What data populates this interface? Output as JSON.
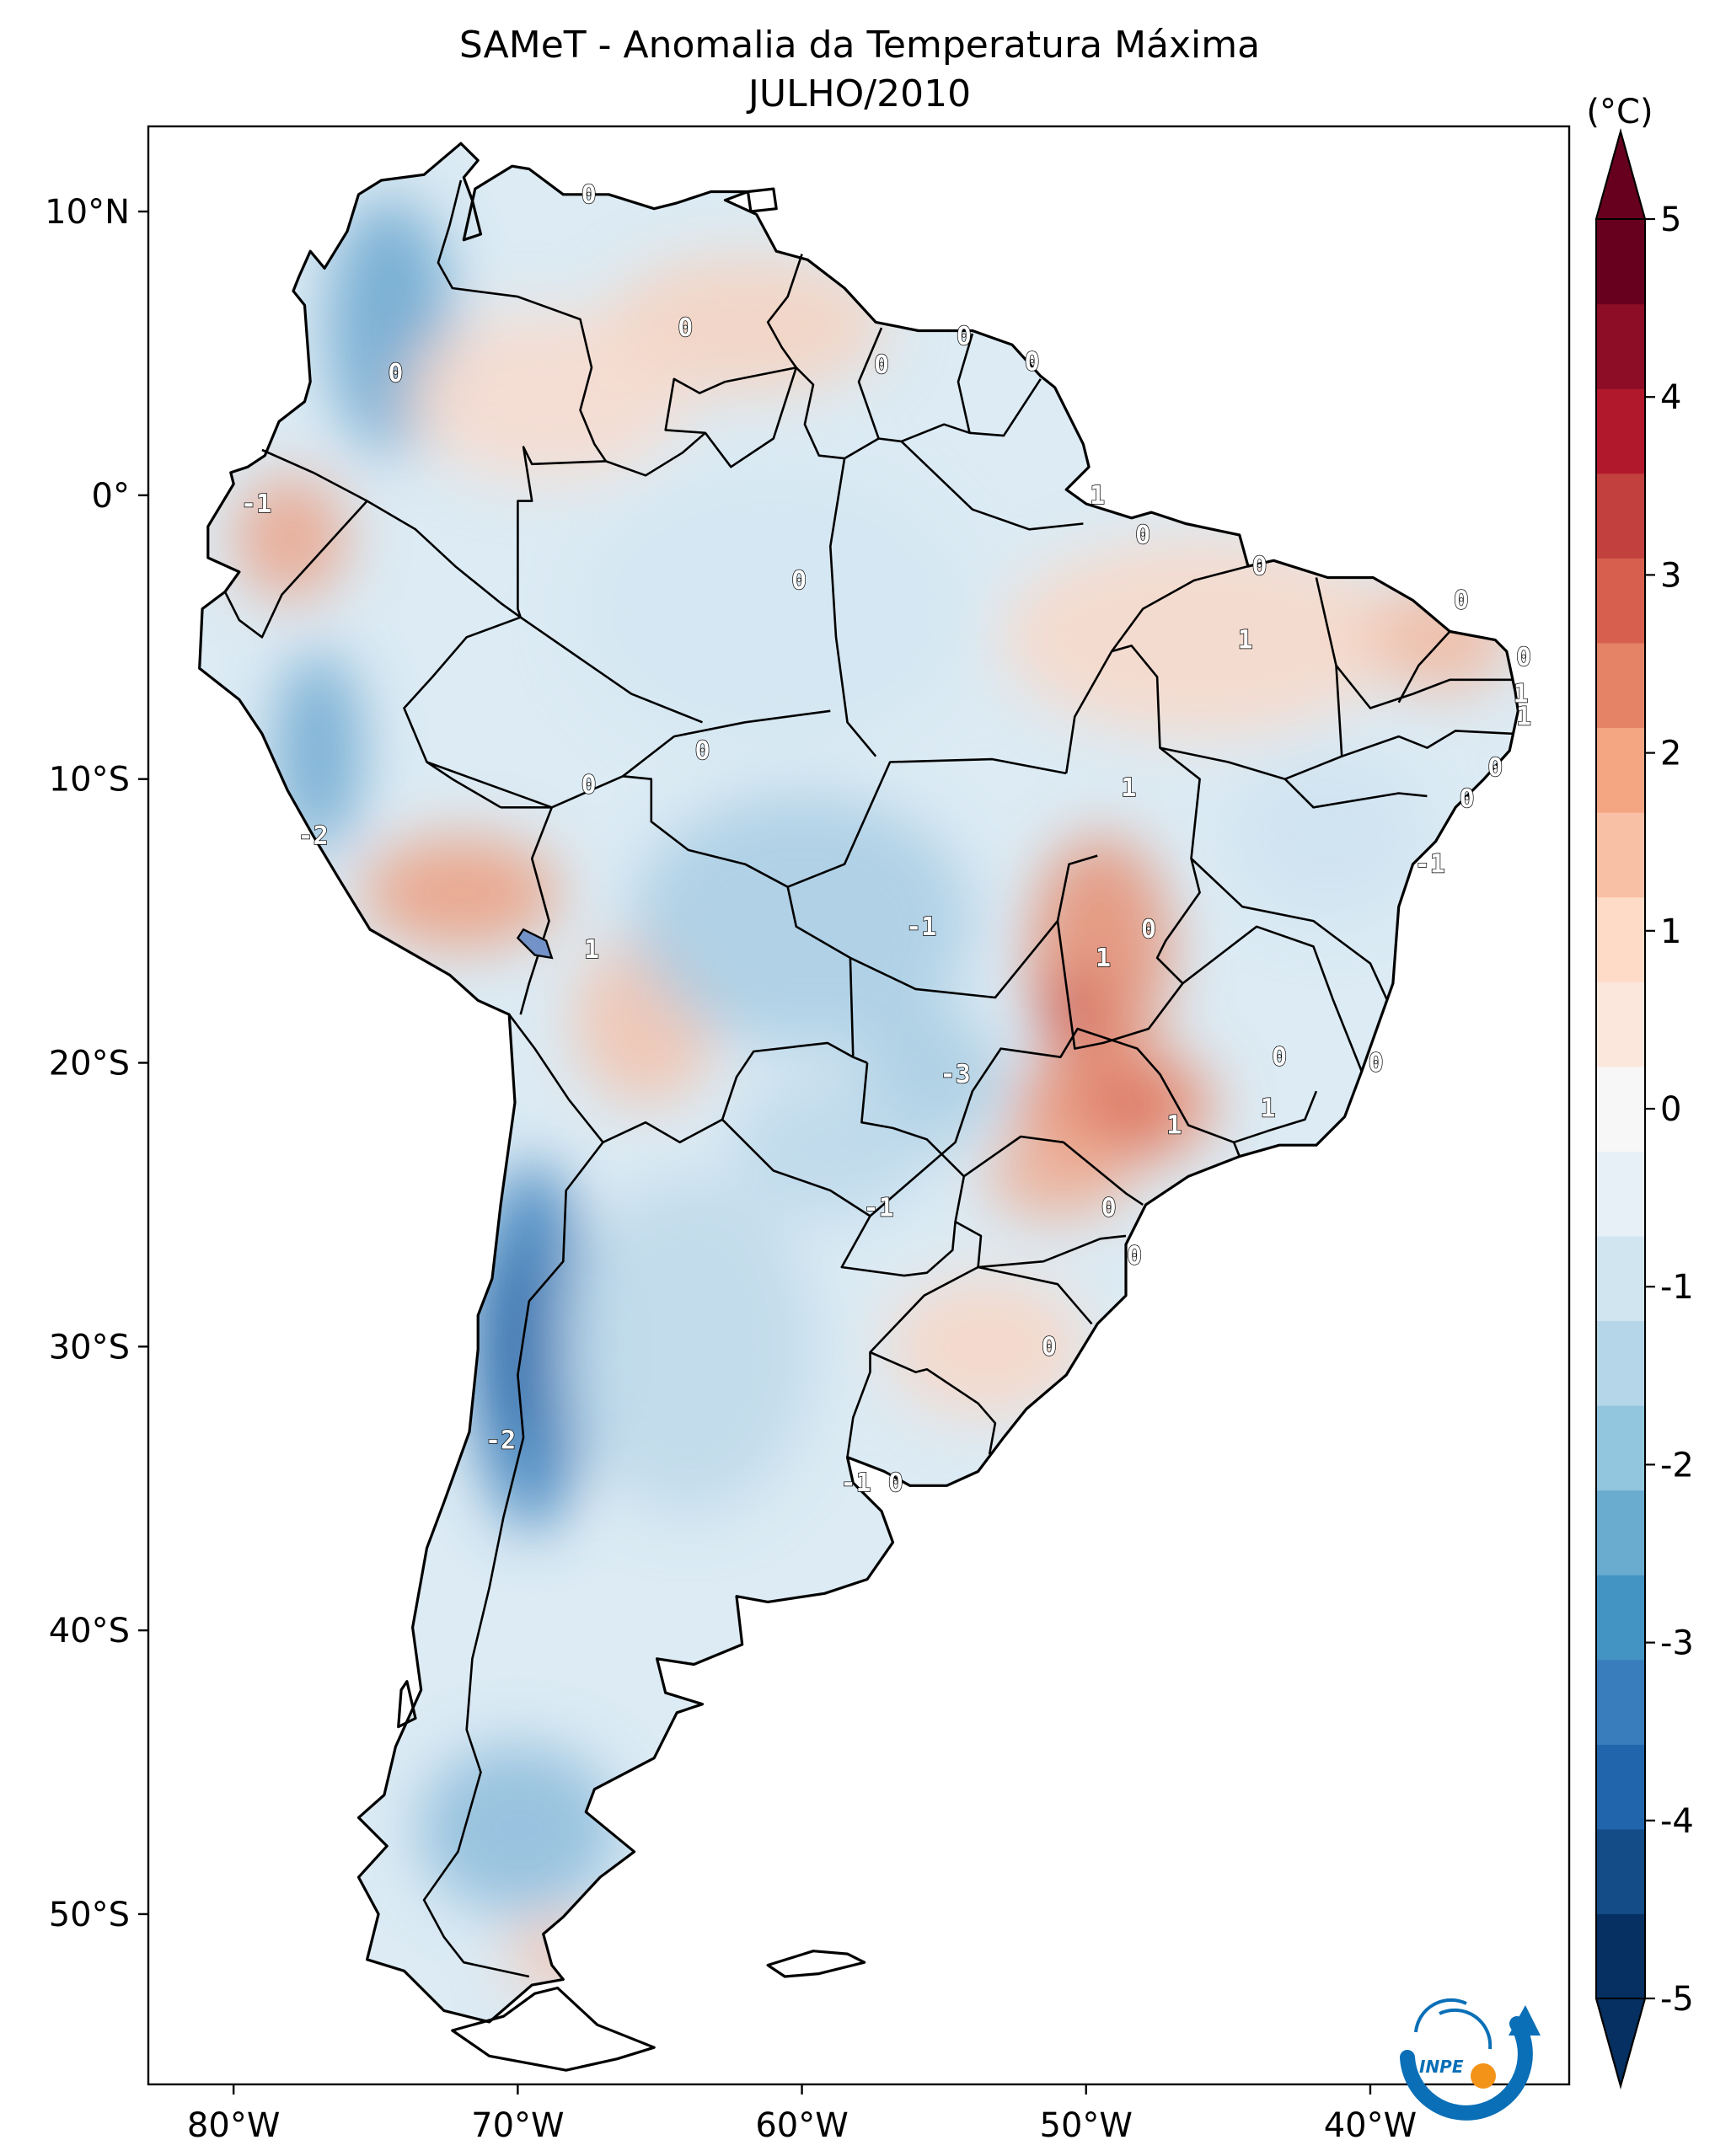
{
  "title": {
    "line1": "SAMeT - Anomalia da Temperatura Máxima",
    "line2": "JULHO/2010"
  },
  "map": {
    "lon_range": [
      -83,
      -33
    ],
    "lat_range": [
      -56,
      13
    ],
    "x_ticks": [
      {
        "lon": -80,
        "label": "80°W"
      },
      {
        "lon": -70,
        "label": "70°W"
      },
      {
        "lon": -60,
        "label": "60°W"
      },
      {
        "lon": -50,
        "label": "50°W"
      },
      {
        "lon": -40,
        "label": "40°W"
      }
    ],
    "y_ticks": [
      {
        "lat": 10,
        "label": "10°N"
      },
      {
        "lat": 0,
        "label": "0°"
      },
      {
        "lat": -10,
        "label": "10°S"
      },
      {
        "lat": -20,
        "label": "20°S"
      },
      {
        "lat": -30,
        "label": "30°S"
      },
      {
        "lat": -40,
        "label": "40°S"
      },
      {
        "lat": -50,
        "label": "50°S"
      }
    ],
    "anomaly_regions": [
      {
        "name": "colombia-andes-cold",
        "lon": -74.5,
        "lat": 6,
        "rx": 2.2,
        "ry": 4.5,
        "color": "#6aa6cf"
      },
      {
        "name": "venezuela-warm",
        "lon": -62,
        "lat": 6,
        "rx": 5,
        "ry": 2.5,
        "color": "#f6d2c0"
      },
      {
        "name": "colombia-warm",
        "lon": -69,
        "lat": 3.5,
        "rx": 5,
        "ry": 3,
        "color": "#f8dbcc"
      },
      {
        "name": "ecuador-warm",
        "lon": -78,
        "lat": -1.5,
        "rx": 2,
        "ry": 2.2,
        "color": "#eba288"
      },
      {
        "name": "peru-coast-cold",
        "lon": -77,
        "lat": -9,
        "rx": 1.5,
        "ry": 3.5,
        "color": "#6aa6cf"
      },
      {
        "name": "peru-south-warm",
        "lon": -72,
        "lat": -14,
        "rx": 3.5,
        "ry": 2,
        "color": "#ec9f80"
      },
      {
        "name": "bolivia-warm",
        "lon": -65.5,
        "lat": -18.5,
        "rx": 2.5,
        "ry": 3,
        "color": "#f3c2ab"
      },
      {
        "name": "amazon-cold",
        "lon": -61,
        "lat": -4,
        "rx": 7,
        "ry": 5,
        "color": "#d4e6f1"
      },
      {
        "name": "bolivia-lowland-cold",
        "lon": -60,
        "lat": -15,
        "rx": 6,
        "ry": 4.5,
        "color": "#a9cde4"
      },
      {
        "name": "northeast-warm",
        "lon": -46,
        "lat": -5,
        "rx": 7,
        "ry": 3.5,
        "color": "#f8d8c8"
      },
      {
        "name": "potiguar-warm",
        "lon": -37.5,
        "lat": -5,
        "rx": 2.5,
        "ry": 2,
        "color": "#f2b9a0"
      },
      {
        "name": "bahia-cold",
        "lon": -41.5,
        "lat": -12,
        "rx": 3.5,
        "ry": 3,
        "color": "#cfe3f0"
      },
      {
        "name": "tocantins-goias-warm",
        "lon": -49.5,
        "lat": -16,
        "rx": 2.5,
        "ry": 4,
        "color": "#e68e71"
      },
      {
        "name": "goias-hotspot",
        "lon": -50.5,
        "lat": -18.2,
        "rx": 0.9,
        "ry": 1.2,
        "color": "#c23a3a"
      },
      {
        "name": "sao-paulo-warm",
        "lon": -49,
        "lat": -21.5,
        "rx": 3.5,
        "ry": 2.2,
        "color": "#e98c6f"
      },
      {
        "name": "sao-paulo-hotspot",
        "lon": -48.5,
        "lat": -21.5,
        "rx": 1.2,
        "ry": 1,
        "color": "#d45a4b"
      },
      {
        "name": "parana-warm",
        "lon": -51,
        "lat": -24,
        "rx": 2.5,
        "ry": 1.5,
        "color": "#efab91"
      },
      {
        "name": "rio-grande-warm",
        "lon": -53.5,
        "lat": -30,
        "rx": 3.5,
        "ry": 2.5,
        "color": "#f8d6c6"
      },
      {
        "name": "mato-grosso-sul-cold",
        "lon": -55.5,
        "lat": -20.5,
        "rx": 2.5,
        "ry": 2.5,
        "color": "#a8cce3"
      },
      {
        "name": "paraguay-cold",
        "lon": -59,
        "lat": -23,
        "rx": 3.5,
        "ry": 2.5,
        "color": "#bcd8ea"
      },
      {
        "name": "andes-central-cold",
        "lon": -69.5,
        "lat": -30,
        "rx": 2.2,
        "ry": 6.5,
        "color": "#3f82bd"
      },
      {
        "name": "andes-core-cold",
        "lon": -70,
        "lat": -30,
        "rx": 1,
        "ry": 3.5,
        "color": "#2a65a6"
      },
      {
        "name": "argentina-center-cold",
        "lon": -64,
        "lat": -30,
        "rx": 4.5,
        "ry": 6,
        "color": "#bed9ea"
      },
      {
        "name": "patagonia-cold",
        "lon": -70,
        "lat": -47,
        "rx": 3.5,
        "ry": 3,
        "color": "#8cbbdb"
      },
      {
        "name": "patagonia-south-warm",
        "lon": -68.5,
        "lat": -51.5,
        "rx": 1.8,
        "ry": 1.3,
        "color": "#f3c4b0"
      }
    ],
    "contour_labels": [
      {
        "lon": -67.5,
        "lat": 10.6,
        "label": "0"
      },
      {
        "lon": -74.3,
        "lat": 4.3,
        "label": "0"
      },
      {
        "lon": -64.1,
        "lat": 5.9,
        "label": "0"
      },
      {
        "lon": -57.2,
        "lat": 4.6,
        "label": "0"
      },
      {
        "lon": -54.3,
        "lat": 5.6,
        "label": "0"
      },
      {
        "lon": -51.9,
        "lat": 4.7,
        "label": "0"
      },
      {
        "lon": -49.6,
        "lat": 0,
        "label": "1"
      },
      {
        "lon": -48.0,
        "lat": -1.4,
        "label": "0"
      },
      {
        "lon": -79.2,
        "lat": -0.3,
        "label": "-1"
      },
      {
        "lon": -60.1,
        "lat": -3.0,
        "label": "0"
      },
      {
        "lon": -43.9,
        "lat": -2.5,
        "label": "0"
      },
      {
        "lon": -36.8,
        "lat": -3.7,
        "label": "0"
      },
      {
        "lon": -44.4,
        "lat": -5.1,
        "label": "1"
      },
      {
        "lon": -34.6,
        "lat": -5.7,
        "label": "0"
      },
      {
        "lon": -34.7,
        "lat": -7.0,
        "label": "1"
      },
      {
        "lon": -34.6,
        "lat": -7.8,
        "label": "1"
      },
      {
        "lon": -35.6,
        "lat": -9.6,
        "label": "0"
      },
      {
        "lon": -36.6,
        "lat": -10.7,
        "label": "0"
      },
      {
        "lon": -63.5,
        "lat": -9.0,
        "label": "0"
      },
      {
        "lon": -67.5,
        "lat": -10.2,
        "label": "0"
      },
      {
        "lon": -48.5,
        "lat": -10.3,
        "label": "1"
      },
      {
        "lon": -77.2,
        "lat": -12.0,
        "label": "-2"
      },
      {
        "lon": -37.9,
        "lat": -13.0,
        "label": "-1"
      },
      {
        "lon": -55.8,
        "lat": -15.2,
        "label": "-1"
      },
      {
        "lon": -47.8,
        "lat": -15.3,
        "label": "0"
      },
      {
        "lon": -49.4,
        "lat": -16.3,
        "label": "1"
      },
      {
        "lon": -67.4,
        "lat": -16.0,
        "label": "1"
      },
      {
        "lon": -54.6,
        "lat": -20.4,
        "label": "-3"
      },
      {
        "lon": -43.2,
        "lat": -19.8,
        "label": "0"
      },
      {
        "lon": -39.8,
        "lat": -20.0,
        "label": "0"
      },
      {
        "lon": -46.9,
        "lat": -22.2,
        "label": "1"
      },
      {
        "lon": -43.6,
        "lat": -21.6,
        "label": "1"
      },
      {
        "lon": -57.3,
        "lat": -25.1,
        "label": "-1"
      },
      {
        "lon": -49.2,
        "lat": -25.1,
        "label": "0"
      },
      {
        "lon": -48.3,
        "lat": -26.8,
        "label": "0"
      },
      {
        "lon": -51.3,
        "lat": -30.0,
        "label": "0"
      },
      {
        "lon": -70.6,
        "lat": -33.3,
        "label": "-2"
      },
      {
        "lon": -58.1,
        "lat": -34.8,
        "label": "-1"
      },
      {
        "lon": -56.7,
        "lat": -34.8,
        "label": "0"
      }
    ]
  },
  "colorbar": {
    "unit_label": "(°C)",
    "vmin": -5,
    "vmax": 5,
    "ticks": [
      "-5",
      "-4",
      "-3",
      "-2",
      "-1",
      "0",
      "1",
      "2",
      "3",
      "4",
      "5"
    ],
    "colors": [
      "#053061",
      "#134c87",
      "#2166ac",
      "#3a7dbd",
      "#4393c3",
      "#6aaccf",
      "#92c5de",
      "#b4d6e8",
      "#d1e5f0",
      "#e7f0f6",
      "#f7f7f7",
      "#fbe7dc",
      "#fddbc7",
      "#f8c0a5",
      "#f4a582",
      "#e48366",
      "#d6604d",
      "#c2403d",
      "#b2182b",
      "#8c0d25",
      "#67001f"
    ]
  },
  "logo": {
    "text": "INPE",
    "colors": [
      "#0a6fb7",
      "#f39419"
    ]
  }
}
